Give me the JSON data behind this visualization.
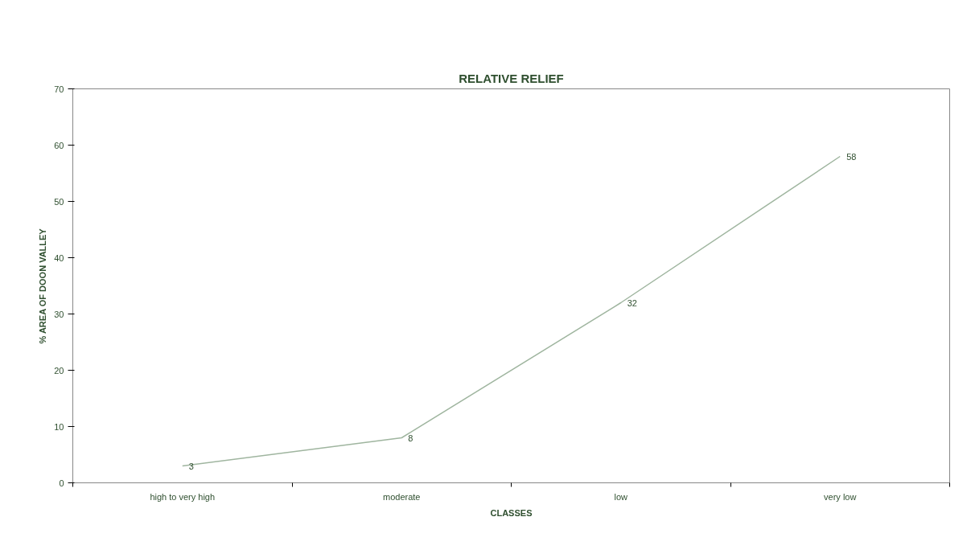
{
  "chart_data": {
    "type": "line",
    "title": "RELATIVE RELIEF",
    "xlabel": "CLASSES",
    "ylabel": "% AREA OF DOON VALLEY",
    "categories": [
      "high to very high",
      "moderate",
      "low",
      "very low"
    ],
    "series": [
      {
        "color": "#9fb59f",
        "values": [
          3,
          8,
          32,
          58
        ]
      }
    ],
    "ylim": [
      0,
      70
    ],
    "yticks": [
      0,
      10,
      20,
      30,
      40,
      50,
      60,
      70
    ],
    "data_labels": true,
    "grid": false,
    "marker": "none",
    "line_style": "solid"
  }
}
